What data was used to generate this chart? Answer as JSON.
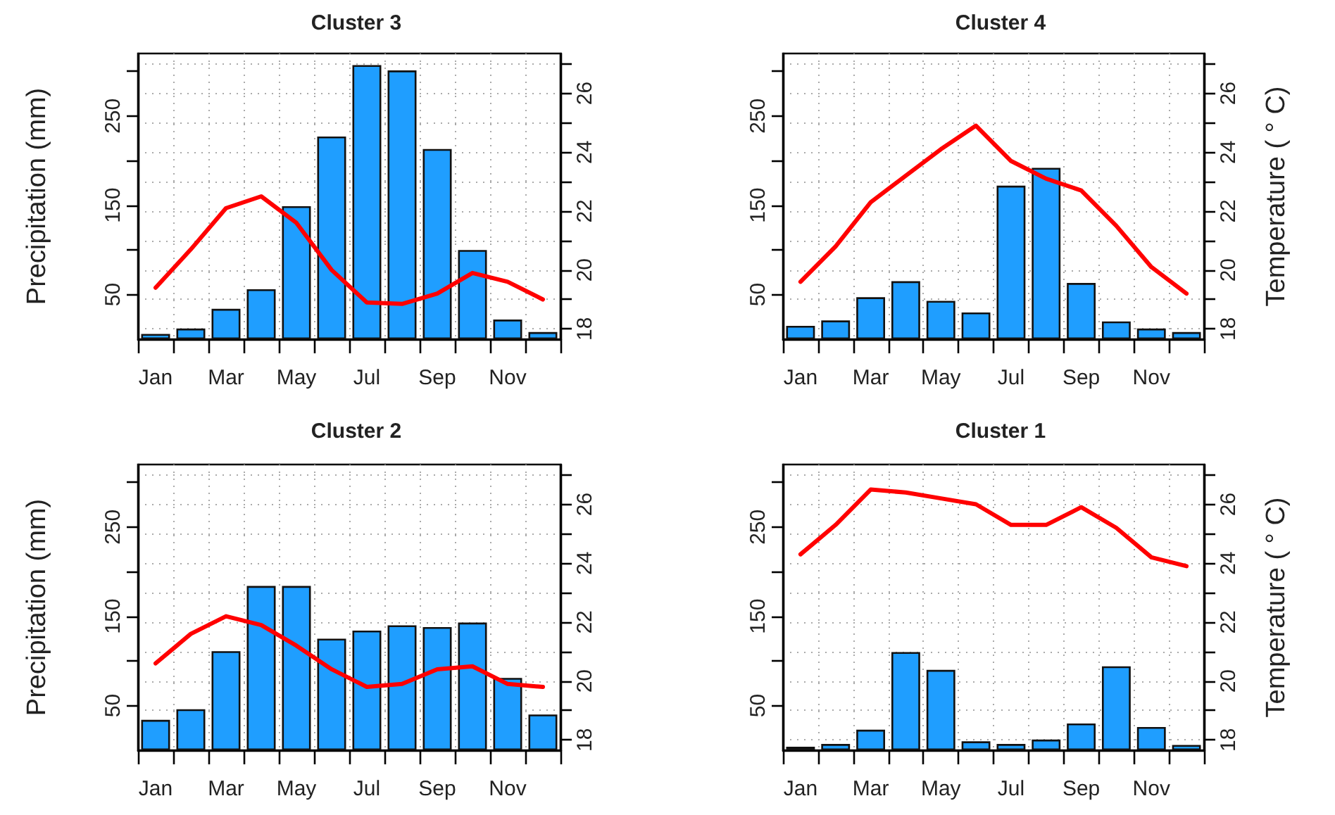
{
  "chart_data": [
    {
      "type": "bar",
      "title": "Cluster 3",
      "ylabel": "Precipitation (mm)",
      "categories": [
        "Jan",
        null,
        "Mar",
        null,
        "May",
        null,
        "Jul",
        null,
        "Sep",
        null,
        "Nov",
        null
      ],
      "series": [
        {
          "color": "#1f9eff",
          "values": [
            6,
            12,
            34,
            56,
            149,
            227,
            307,
            301,
            213,
            100,
            22,
            8
          ]
        },
        {
          "type": "line",
          "axis": "y2",
          "color": "#ff0000",
          "values": [
            19.4,
            20.7,
            22.1,
            22.5,
            21.6,
            20.0,
            18.9,
            18.85,
            19.2,
            19.9,
            19.6,
            19.0
          ]
        }
      ],
      "ylim": [
        0,
        320
      ],
      "yticks": [
        50,
        {
          "value": 100,
          "label": null
        },
        150,
        {
          "value": 200,
          "label": null
        },
        250,
        {
          "value": 300,
          "label": null
        }
      ],
      "y2lim": [
        17.65,
        27.35
      ],
      "y2ticks": [
        18,
        {
          "value": 19,
          "label": null
        },
        20,
        {
          "value": 21,
          "label": null
        },
        22,
        {
          "value": 23,
          "label": null
        },
        24,
        {
          "value": 25,
          "label": null
        },
        26,
        {
          "value": 27,
          "label": null
        }
      ],
      "grid": true,
      "marker": "none",
      "line_style": "solid"
    },
    {
      "type": "bar",
      "title": "Cluster 4",
      "y2label": "Temperature ( ° C)",
      "categories": [
        "Jan",
        null,
        "Mar",
        null,
        "May",
        null,
        "Jul",
        null,
        "Sep",
        null,
        "Nov",
        null
      ],
      "series": [
        {
          "color": "#1f9eff",
          "values": [
            15,
            21,
            47,
            65,
            43,
            30,
            172,
            192,
            63,
            20,
            12,
            8
          ]
        },
        {
          "type": "line",
          "axis": "y2",
          "color": "#ff0000",
          "values": [
            19.6,
            20.8,
            22.3,
            23.2,
            24.1,
            24.9,
            23.7,
            23.1,
            22.7,
            21.5,
            20.1,
            19.2
          ]
        }
      ],
      "ylim": [
        0,
        320
      ],
      "yticks": [
        50,
        {
          "value": 100,
          "label": null
        },
        150,
        {
          "value": 200,
          "label": null
        },
        250,
        {
          "value": 300,
          "label": null
        }
      ],
      "y2lim": [
        17.65,
        27.35
      ],
      "y2ticks": [
        18,
        {
          "value": 19,
          "label": null
        },
        20,
        {
          "value": 21,
          "label": null
        },
        22,
        {
          "value": 23,
          "label": null
        },
        24,
        {
          "value": 25,
          "label": null
        },
        26,
        {
          "value": 27,
          "label": null
        }
      ],
      "grid": true,
      "marker": "none",
      "line_style": "solid"
    },
    {
      "type": "bar",
      "title": "Cluster 2",
      "ylabel": "Precipitation (mm)",
      "categories": [
        "Jan",
        null,
        "Mar",
        null,
        "May",
        null,
        "Jul",
        null,
        "Sep",
        null,
        "Nov",
        null
      ],
      "series": [
        {
          "color": "#1f9eff",
          "values": [
            34,
            46,
            111,
            184,
            184,
            125,
            134,
            140,
            138,
            143,
            81,
            40
          ]
        },
        {
          "type": "line",
          "axis": "y2",
          "color": "#ff0000",
          "values": [
            20.6,
            21.6,
            22.2,
            21.9,
            21.2,
            20.4,
            19.8,
            19.9,
            20.4,
            20.5,
            19.9,
            19.8
          ]
        }
      ],
      "ylim": [
        0,
        320
      ],
      "yticks": [
        50,
        {
          "value": 100,
          "label": null
        },
        150,
        {
          "value": 200,
          "label": null
        },
        250,
        {
          "value": 300,
          "label": null
        }
      ],
      "y2lim": [
        17.65,
        27.35
      ],
      "y2ticks": [
        18,
        {
          "value": 19,
          "label": null
        },
        20,
        {
          "value": 21,
          "label": null
        },
        22,
        {
          "value": 23,
          "label": null
        },
        24,
        {
          "value": 25,
          "label": null
        },
        26,
        {
          "value": 27,
          "label": null
        }
      ],
      "grid": true,
      "marker": "none",
      "line_style": "solid"
    },
    {
      "type": "bar",
      "title": "Cluster 1",
      "y2label": "Temperature ( ° C)",
      "categories": [
        "Jan",
        null,
        "Mar",
        null,
        "May",
        null,
        "Jul",
        null,
        "Sep",
        null,
        "Nov",
        null
      ],
      "series": [
        {
          "color": "#1f9eff",
          "values": [
            4,
            7,
            23,
            110,
            90,
            10,
            7,
            12,
            30,
            94,
            26,
            6
          ]
        },
        {
          "type": "line",
          "axis": "y2",
          "color": "#ff0000",
          "values": [
            24.3,
            25.3,
            26.5,
            26.4,
            26.2,
            26.0,
            25.3,
            25.3,
            25.9,
            25.2,
            24.2,
            23.9
          ]
        }
      ],
      "ylim": [
        0,
        320
      ],
      "yticks": [
        50,
        {
          "value": 100,
          "label": null
        },
        150,
        {
          "value": 200,
          "label": null
        },
        250,
        {
          "value": 300,
          "label": null
        }
      ],
      "y2lim": [
        17.65,
        27.35
      ],
      "y2ticks": [
        18,
        {
          "value": 19,
          "label": null
        },
        20,
        {
          "value": 21,
          "label": null
        },
        22,
        {
          "value": 23,
          "label": null
        },
        24,
        {
          "value": 25,
          "label": null
        },
        26,
        {
          "value": 27,
          "label": null
        }
      ],
      "grid": true,
      "marker": "none",
      "line_style": "solid"
    }
  ]
}
